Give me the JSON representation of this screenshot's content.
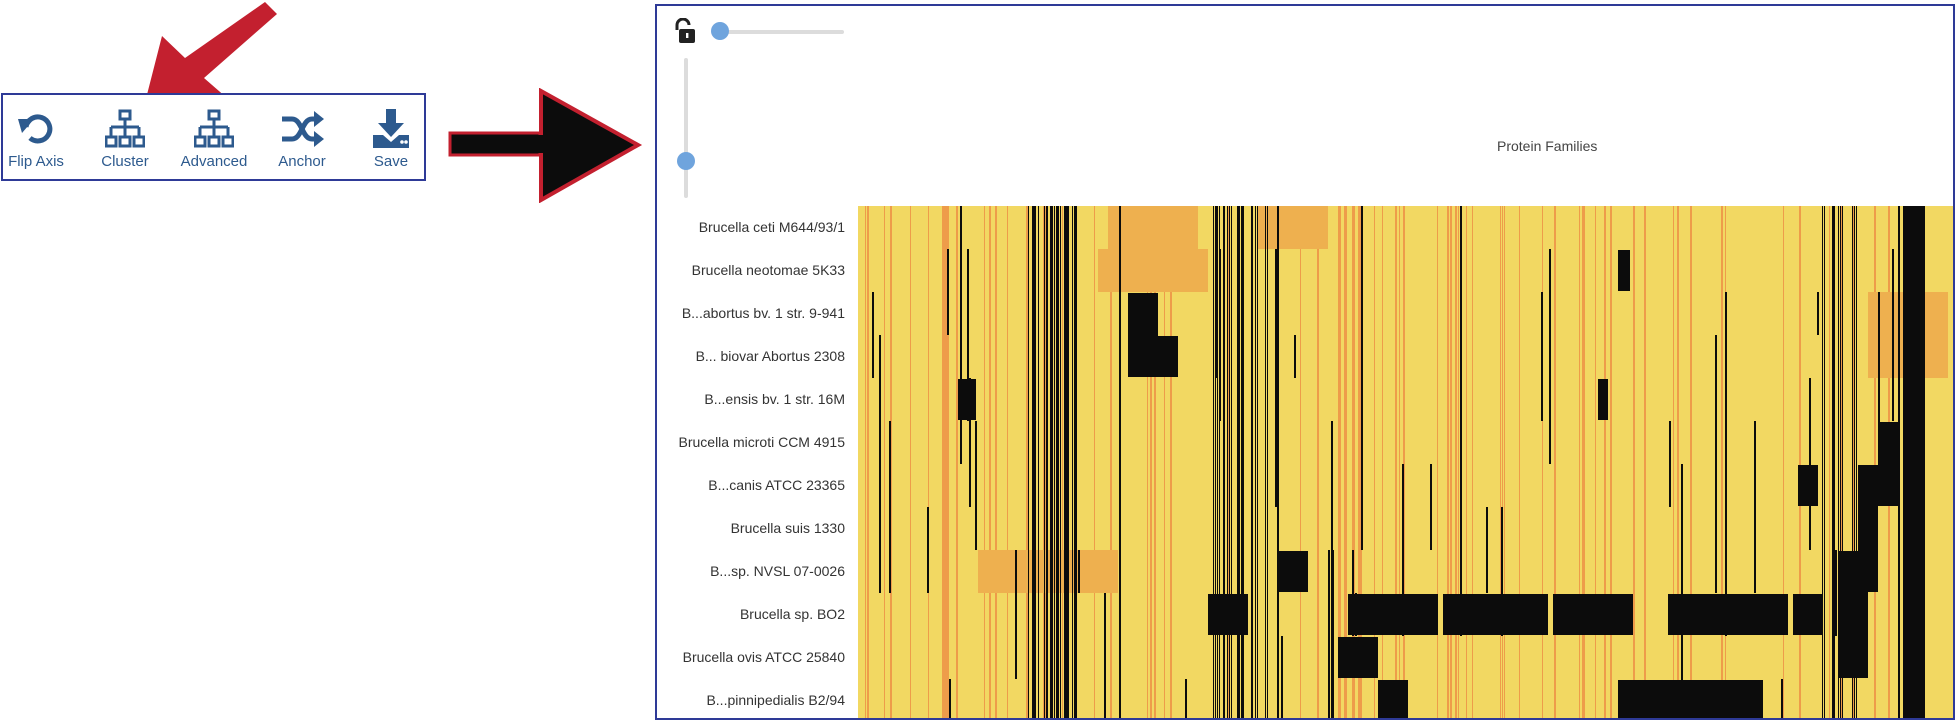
{
  "toolbar": {
    "items": [
      {
        "label": "Flip Axis",
        "icon": "undo-icon"
      },
      {
        "label": "Cluster",
        "icon": "sitemap-icon"
      },
      {
        "label": "Advanced",
        "icon": "sitemap-icon"
      },
      {
        "label": "Anchor",
        "icon": "shuffle-icon"
      },
      {
        "label": "Save",
        "icon": "download-icon"
      }
    ]
  },
  "heatmap": {
    "x_axis_title": "Protein Families",
    "rows": [
      "Brucella ceti M644/93/1",
      "Brucella neotomae 5K33",
      "B...abortus bv. 1 str. 9-941",
      "B... biovar Abortus 2308",
      "B...ensis bv. 1 str. 16M",
      "Brucella microti CCM 4915",
      "B...canis ATCC 23365",
      "Brucella suis 1330",
      "B...sp. NVSL 07-0026",
      "Brucella sp. BO2",
      "Brucella ovis ATCC 25840",
      "B...pinnipedialis B2/94"
    ]
  },
  "colors": {
    "accent_blue": "#2d5a8e",
    "border_blue": "#2e3a97",
    "arrow_red": "#c3202f",
    "heat_yellow": "#f2d862",
    "heat_orange": "#ee9c4a",
    "heat_black": "#0c0c0c"
  }
}
